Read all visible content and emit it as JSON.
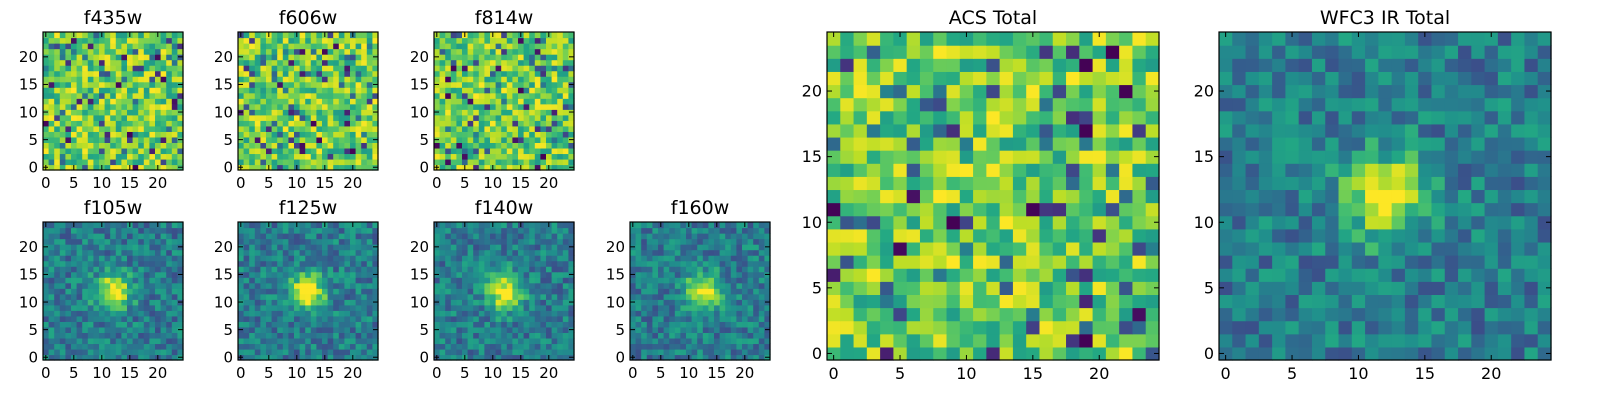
{
  "chart_data": [
    {
      "type": "heatmap",
      "title": "f435w",
      "x_ticks": [
        "0",
        "5",
        "10",
        "15",
        "20"
      ],
      "y_ticks": [
        "0",
        "5",
        "10",
        "15",
        "20"
      ],
      "extent": [
        0,
        25
      ],
      "colormap": "viridis",
      "pattern": "noise"
    },
    {
      "type": "heatmap",
      "title": "f606w",
      "x_ticks": [
        "0",
        "5",
        "10",
        "15",
        "20"
      ],
      "y_ticks": [
        "0",
        "5",
        "10",
        "15",
        "20"
      ],
      "extent": [
        0,
        25
      ],
      "colormap": "viridis",
      "pattern": "noise"
    },
    {
      "type": "heatmap",
      "title": "f814w",
      "x_ticks": [
        "0",
        "5",
        "10",
        "15",
        "20"
      ],
      "y_ticks": [
        "0",
        "5",
        "10",
        "15",
        "20"
      ],
      "extent": [
        0,
        25
      ],
      "colormap": "viridis",
      "pattern": "noise"
    },
    {
      "type": "heatmap",
      "title": "f105w",
      "x_ticks": [
        "0",
        "5",
        "10",
        "15",
        "20"
      ],
      "y_ticks": [
        "0",
        "5",
        "10",
        "15",
        "20"
      ],
      "extent": [
        0,
        25
      ],
      "colormap": "viridis",
      "pattern": "source",
      "source_center": [
        12.5,
        12.5
      ]
    },
    {
      "type": "heatmap",
      "title": "f125w",
      "x_ticks": [
        "0",
        "5",
        "10",
        "15",
        "20"
      ],
      "y_ticks": [
        "0",
        "5",
        "10",
        "15",
        "20"
      ],
      "extent": [
        0,
        25
      ],
      "colormap": "viridis",
      "pattern": "source",
      "source_center": [
        12.5,
        12.5
      ]
    },
    {
      "type": "heatmap",
      "title": "f140w",
      "x_ticks": [
        "0",
        "5",
        "10",
        "15",
        "20"
      ],
      "y_ticks": [
        "0",
        "5",
        "10",
        "15",
        "20"
      ],
      "extent": [
        0,
        25
      ],
      "colormap": "viridis",
      "pattern": "source",
      "source_center": [
        12.5,
        12.5
      ]
    },
    {
      "type": "heatmap",
      "title": "f160w",
      "x_ticks": [
        "0",
        "5",
        "10",
        "15",
        "20"
      ],
      "y_ticks": [
        "0",
        "5",
        "10",
        "15",
        "20"
      ],
      "extent": [
        0,
        25
      ],
      "colormap": "viridis",
      "pattern": "source",
      "source_center": [
        13,
        12.5
      ]
    },
    {
      "type": "heatmap",
      "title": "ACS Total",
      "x_ticks": [
        "0",
        "5",
        "10",
        "15",
        "20"
      ],
      "y_ticks": [
        "0",
        "5",
        "10",
        "15",
        "20"
      ],
      "extent": [
        0,
        25
      ],
      "colormap": "viridis",
      "pattern": "noise"
    },
    {
      "type": "heatmap",
      "title": "WFC3 IR Total",
      "x_ticks": [
        "0",
        "5",
        "10",
        "15",
        "20"
      ],
      "y_ticks": [
        "0",
        "5",
        "10",
        "15",
        "20"
      ],
      "extent": [
        0,
        25
      ],
      "colormap": "viridis",
      "pattern": "source",
      "source_center": [
        12.5,
        12.5
      ]
    }
  ]
}
